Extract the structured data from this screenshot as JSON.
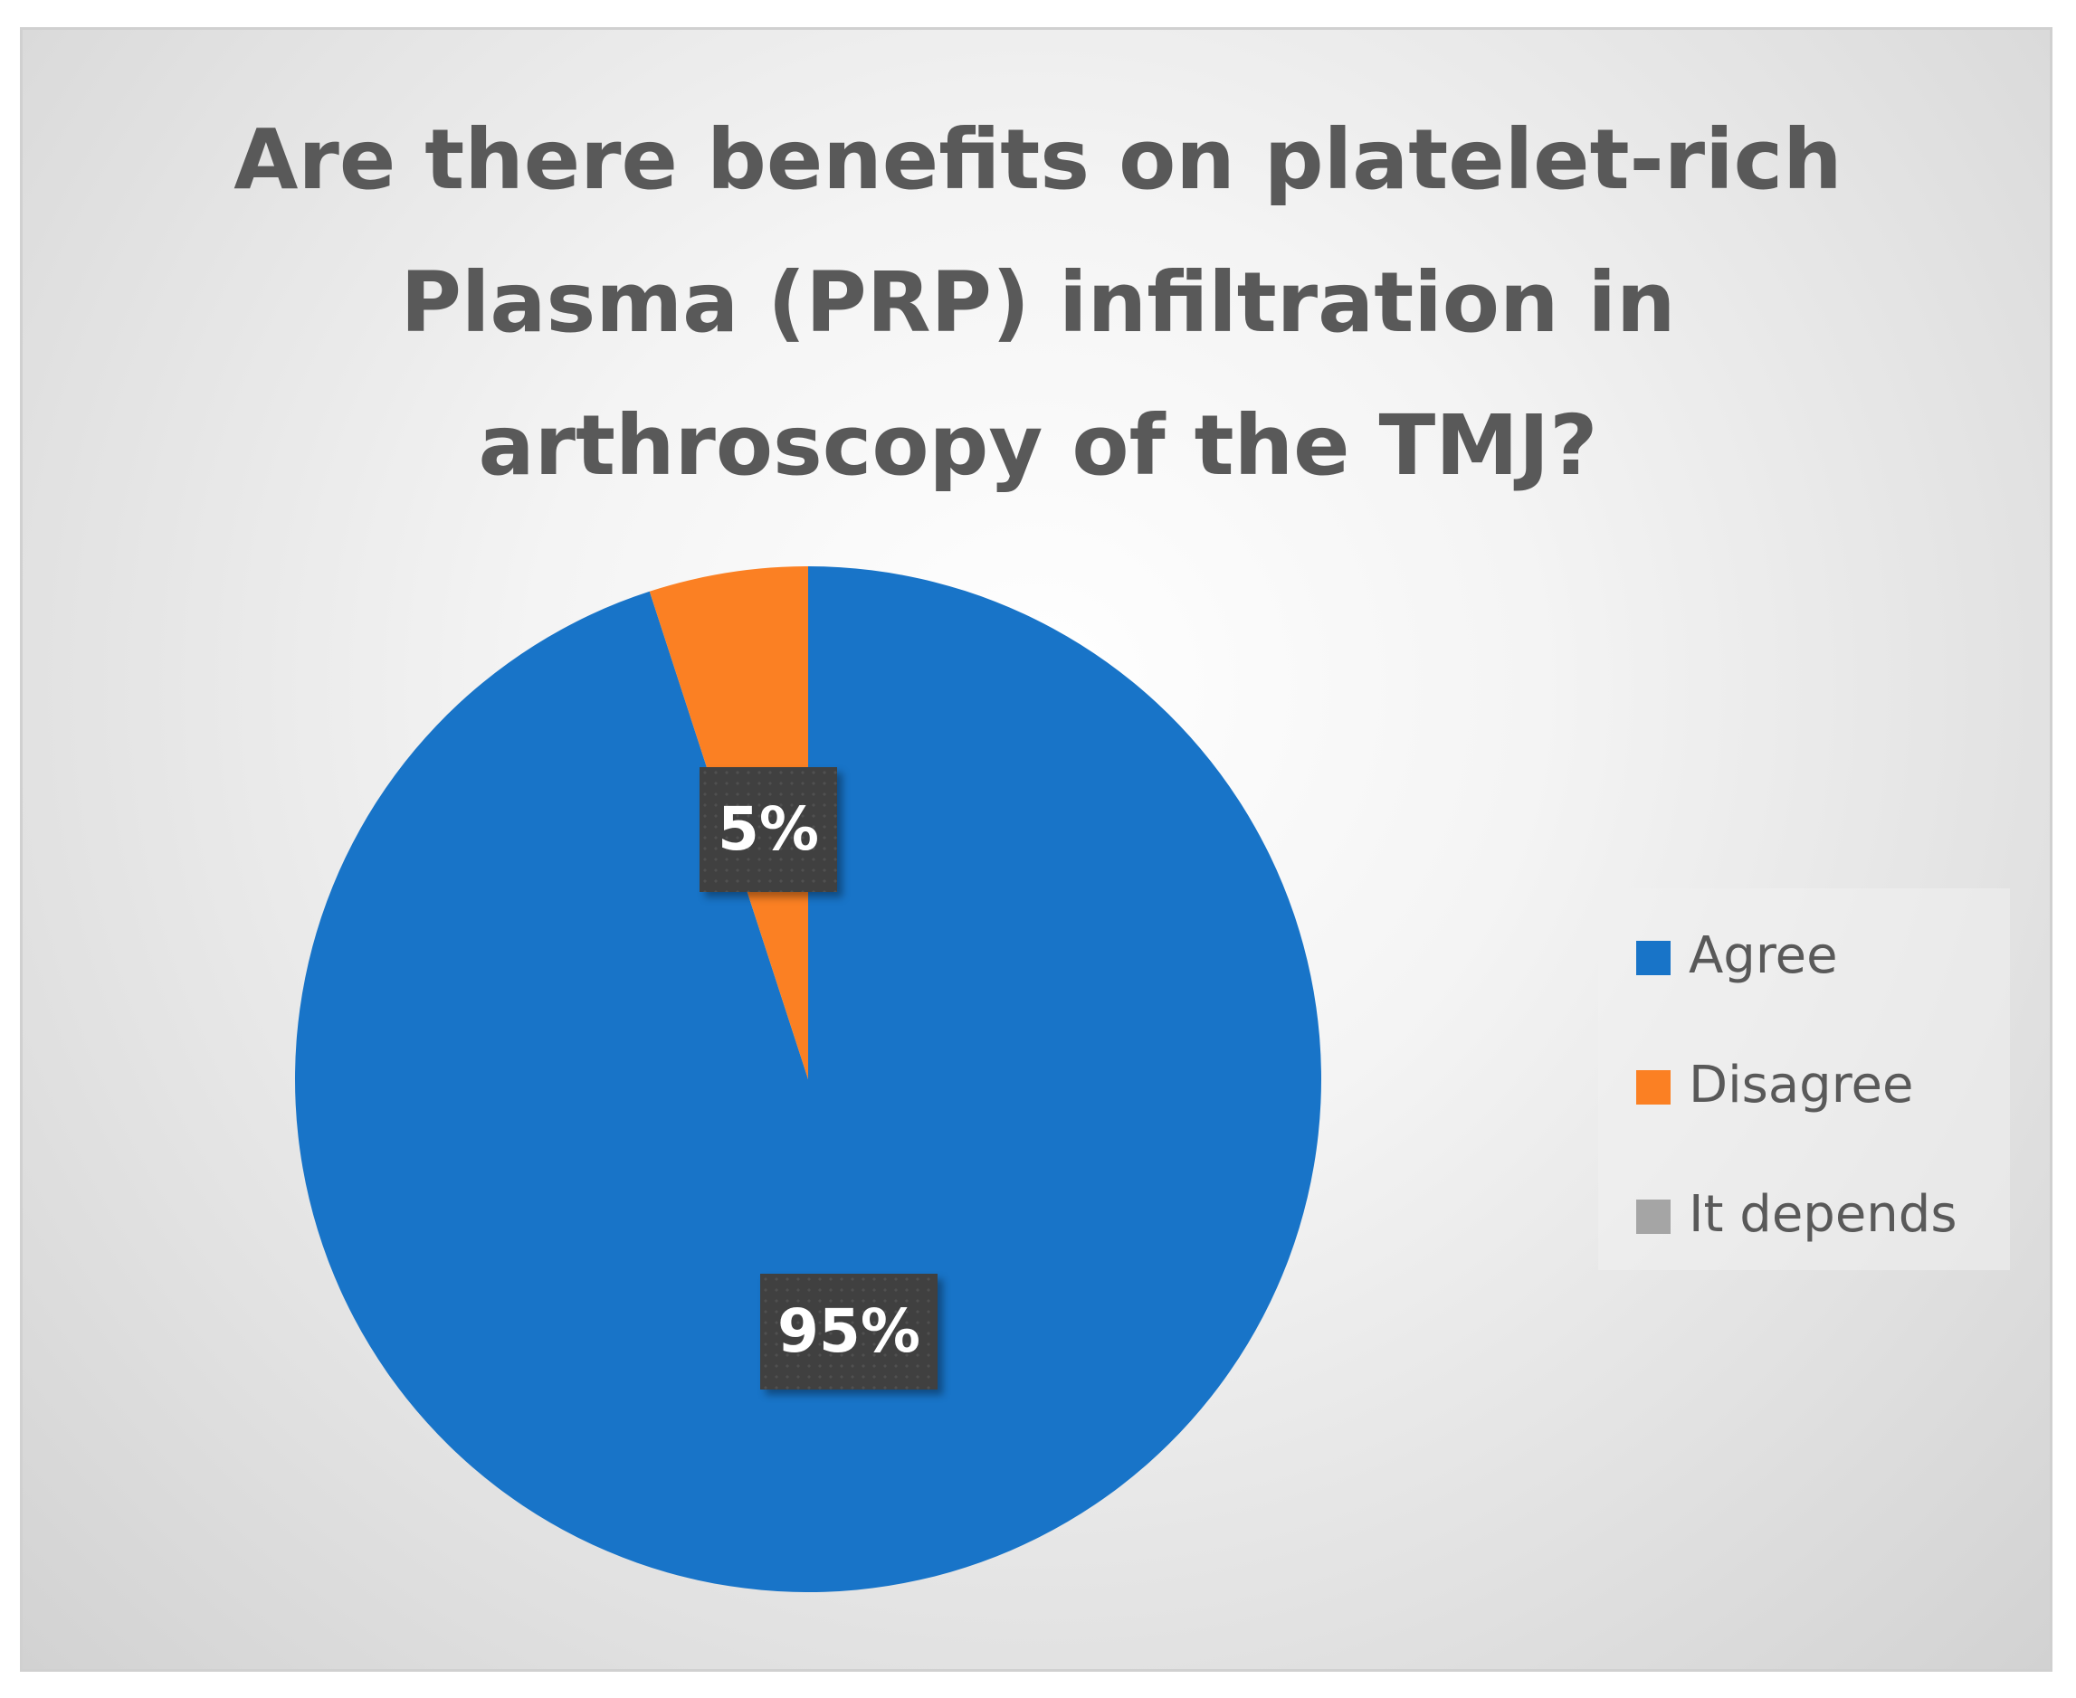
{
  "chart_data": {
    "type": "pie",
    "title_lines": [
      "Are there benefits on platelet-rich",
      "Plasma (PRP) infiltration in",
      "arthroscopy of the TMJ?"
    ],
    "slices": [
      {
        "name": "Agree",
        "value": 95,
        "label": "95%",
        "color": "#1874c8"
      },
      {
        "name": "Disagree",
        "value": 5,
        "label": "5%",
        "color": "#fb8023"
      },
      {
        "name": "It depends",
        "value": 0,
        "label": "",
        "color": "#a5a5a5"
      }
    ],
    "legend_position": "right"
  }
}
